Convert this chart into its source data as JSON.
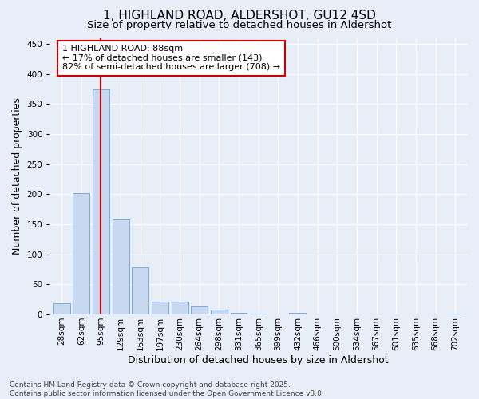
{
  "title": "1, HIGHLAND ROAD, ALDERSHOT, GU12 4SD",
  "subtitle": "Size of property relative to detached houses in Aldershot",
  "xlabel": "Distribution of detached houses by size in Aldershot",
  "ylabel": "Number of detached properties",
  "categories": [
    "28sqm",
    "62sqm",
    "95sqm",
    "129sqm",
    "163sqm",
    "197sqm",
    "230sqm",
    "264sqm",
    "298sqm",
    "331sqm",
    "365sqm",
    "399sqm",
    "432sqm",
    "466sqm",
    "500sqm",
    "534sqm",
    "567sqm",
    "601sqm",
    "635sqm",
    "668sqm",
    "702sqm"
  ],
  "values": [
    18,
    202,
    375,
    158,
    78,
    21,
    21,
    13,
    8,
    3,
    1,
    0,
    3,
    0,
    0,
    0,
    0,
    0,
    0,
    0,
    2
  ],
  "bar_color": "#c8d8f0",
  "bar_edge_color": "#7aabde",
  "vline_x_index": 2,
  "vline_color": "#cc0000",
  "annotation_line1": "1 HIGHLAND ROAD: 88sqm",
  "annotation_line2": "← 17% of detached houses are smaller (143)",
  "annotation_line3": "82% of semi-detached houses are larger (708) →",
  "annotation_box_facecolor": "#ffffff",
  "annotation_box_edgecolor": "#cc0000",
  "ylim": [
    0,
    460
  ],
  "yticks": [
    0,
    50,
    100,
    150,
    200,
    250,
    300,
    350,
    400,
    450
  ],
  "background_color": "#e8eef8",
  "plot_bg_color": "#e8eef8",
  "grid_color": "#ffffff",
  "footer_text": "Contains HM Land Registry data © Crown copyright and database right 2025.\nContains public sector information licensed under the Open Government Licence v3.0.",
  "title_fontsize": 11,
  "subtitle_fontsize": 9.5,
  "axis_label_fontsize": 9,
  "tick_fontsize": 7.5,
  "annotation_fontsize": 8,
  "footer_fontsize": 6.5
}
